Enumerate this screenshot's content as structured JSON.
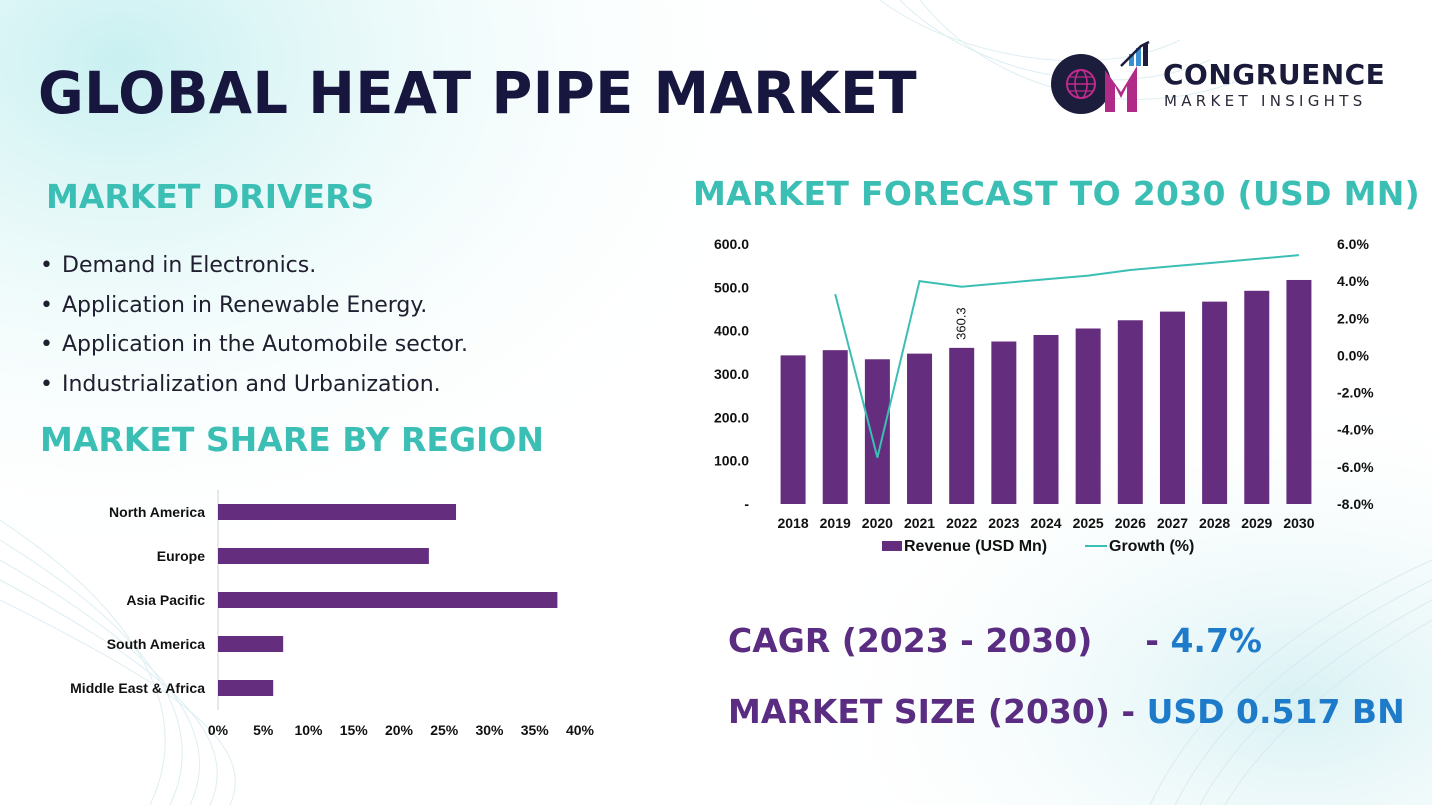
{
  "title": "GLOBAL HEAT PIPE MARKET",
  "logo": {
    "brand": "CONGRUENCE",
    "sub": "MARKET INSIGHTS"
  },
  "drivers": {
    "title": "MARKET DRIVERS",
    "items": [
      "Demand in Electronics.",
      "Application in Renewable Energy.",
      "Application in the Automobile sector.",
      "Industrialization and Urbanization."
    ]
  },
  "region": {
    "title": "MARKET SHARE BY REGION"
  },
  "forecast": {
    "title": "MARKET FORECAST TO 2030 (USD MN)"
  },
  "stats": {
    "cagr_label": "CAGR (2023 - 2030)",
    "cagr_sep": "- ",
    "cagr_value": "4.7%",
    "size_label": "MARKET SIZE (2030) -",
    "size_value": "USD 0.517 BN"
  },
  "colors": {
    "title": "#16163f",
    "section": "#3bbfb5",
    "bar": "#642d7d",
    "line": "#3bbfb5",
    "stat_label": "#5a2c82",
    "stat_value": "#1e7bc9"
  },
  "chart_data": [
    {
      "type": "bar+line",
      "title": "MARKET FORECAST TO 2030 (USD MN)",
      "categories": [
        "2018",
        "2019",
        "2020",
        "2021",
        "2022",
        "2023",
        "2024",
        "2025",
        "2026",
        "2027",
        "2028",
        "2029",
        "2030"
      ],
      "series": [
        {
          "name": "Revenue (USD Mn)",
          "type": "bar",
          "axis": "left",
          "values": [
            343,
            355,
            334,
            347,
            360.3,
            375,
            390,
            405,
            424,
            444,
            467,
            492,
            517
          ]
        },
        {
          "name": "Growth (%)",
          "type": "line",
          "axis": "right",
          "values": [
            null,
            3.3,
            -5.5,
            4.0,
            3.7,
            3.9,
            4.1,
            4.3,
            4.6,
            4.8,
            5.0,
            5.2,
            5.4
          ]
        }
      ],
      "annotations": [
        {
          "category": "2022",
          "text": "360.3"
        }
      ],
      "y_left": {
        "ylim": [
          0,
          600
        ],
        "ticks": [
          "-",
          "100.0",
          "200.0",
          "300.0",
          "400.0",
          "500.0",
          "600.0"
        ]
      },
      "y_right": {
        "ylim": [
          -8,
          6
        ],
        "ticks": [
          "-8.0%",
          "-6.0%",
          "-4.0%",
          "-2.0%",
          "0.0%",
          "2.0%",
          "4.0%",
          "6.0%"
        ]
      },
      "legend": [
        "Revenue (USD Mn)",
        "Growth (%)"
      ],
      "legend_position": "bottom"
    },
    {
      "type": "bar",
      "orientation": "horizontal",
      "title": "MARKET SHARE BY REGION",
      "categories": [
        "North America",
        "Europe",
        "Asia Pacific",
        "South America",
        "Middle East & Africa"
      ],
      "values": [
        26.3,
        23.3,
        37.5,
        7.2,
        6.1
      ],
      "unit": "%",
      "xlim": [
        0,
        40
      ],
      "x_ticks": [
        "0%",
        "5%",
        "10%",
        "15%",
        "20%",
        "25%",
        "30%",
        "35%",
        "40%"
      ]
    }
  ]
}
